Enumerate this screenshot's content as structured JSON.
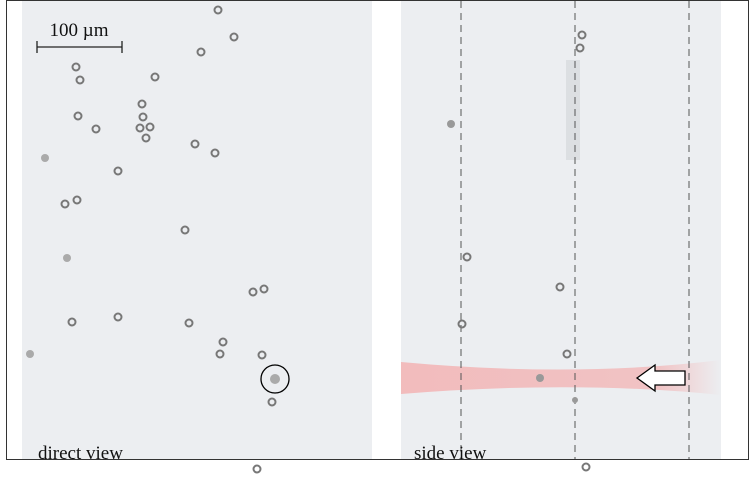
{
  "scale_bar": {
    "label": "100 µm"
  },
  "panels": [
    {
      "label": "direct view"
    },
    {
      "label": "side view"
    }
  ]
}
